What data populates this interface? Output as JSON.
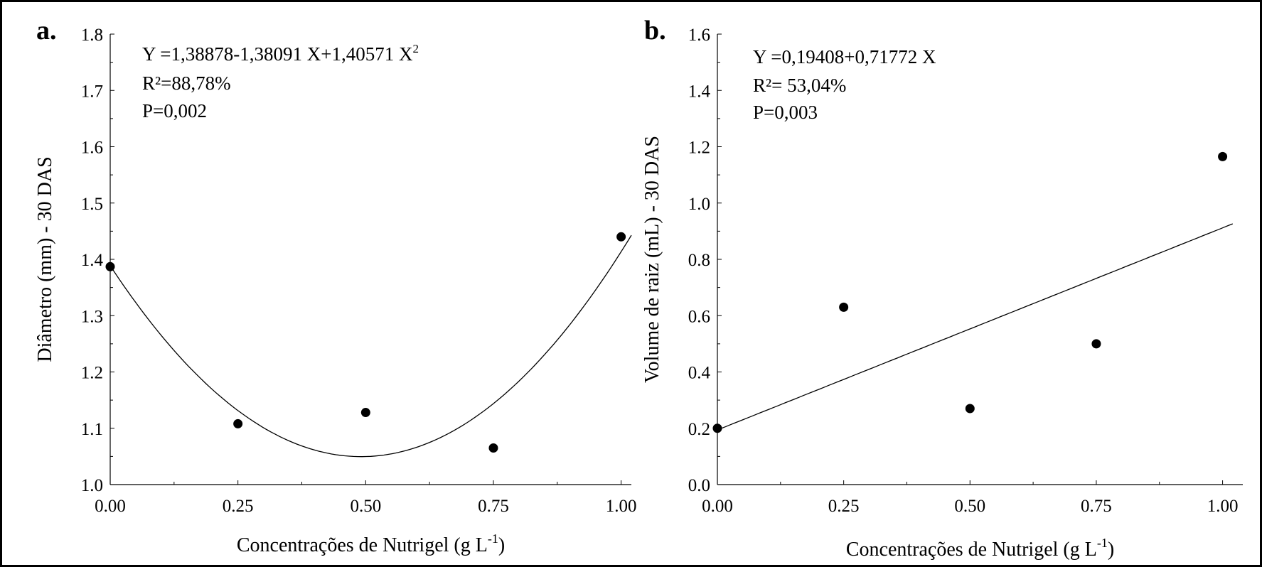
{
  "chart_data": [
    {
      "type": "scatter",
      "panel_label": "a.",
      "title": "",
      "xlabel": "Concentrações de Nutrigel (g L",
      "xlabel_sup": "-1",
      "xlabel_suffix": ")",
      "ylabel": "Diâmetro (mm) - 30 DAS",
      "xlim": [
        0,
        1.02
      ],
      "ylim": [
        1.0,
        1.8
      ],
      "xticks": [
        0.0,
        0.25,
        0.5,
        0.75,
        1.0
      ],
      "xtick_labels": [
        "0.00",
        "0.25",
        "0.50",
        "0.75",
        "1.00"
      ],
      "yticks": [
        1.0,
        1.1,
        1.2,
        1.3,
        1.4,
        1.5,
        1.6,
        1.7,
        1.8
      ],
      "ytick_labels": [
        "1.0",
        "1.1",
        "1.2",
        "1.3",
        "1.4",
        "1.5",
        "1.6",
        "1.7",
        "1.8"
      ],
      "points": {
        "x": [
          0.0,
          0.25,
          0.5,
          0.75,
          1.0
        ],
        "y": [
          1.387,
          1.108,
          1.128,
          1.065,
          1.44
        ]
      },
      "fit": {
        "kind": "quadratic",
        "coefficients": [
          1.38878,
          -1.38091,
          1.40571
        ],
        "x_range": [
          0,
          1.02
        ]
      },
      "annotations": {
        "equation_main": "Y =1,38878-1,38091 X+1,40571 X",
        "equation_sup": "2",
        "r2": "R²=88,78%",
        "p": "P=0,002"
      }
    },
    {
      "type": "scatter",
      "panel_label": "b.",
      "title": "",
      "xlabel": "Concentrações de Nutrigel (g L",
      "xlabel_sup": "-1",
      "xlabel_suffix": ")",
      "ylabel": "Volume de raiz (mL) - 30 DAS",
      "xlim": [
        0,
        1.04
      ],
      "ylim": [
        0.0,
        1.6
      ],
      "xticks": [
        0.0,
        0.25,
        0.5,
        0.75,
        1.0
      ],
      "xtick_labels": [
        "0.00",
        "0.25",
        "0.50",
        "0.75",
        "1.00"
      ],
      "yticks": [
        0.0,
        0.2,
        0.4,
        0.6,
        0.8,
        1.0,
        1.2,
        1.4,
        1.6
      ],
      "ytick_labels": [
        "0.0",
        "0.2",
        "0.4",
        "0.6",
        "0.8",
        "1.0",
        "1.2",
        "1.4",
        "1.6"
      ],
      "points": {
        "x": [
          0.0,
          0.25,
          0.5,
          0.75,
          1.0
        ],
        "y": [
          0.2,
          0.63,
          0.27,
          0.5,
          1.165
        ]
      },
      "fit": {
        "kind": "linear",
        "coefficients": [
          0.19408,
          0.71772
        ],
        "x_range": [
          0,
          1.02
        ]
      },
      "annotations": {
        "equation_main": "Y =0,19408+0,71772 X",
        "equation_sup": "",
        "r2": "R²= 53,04%",
        "p": "P=0,003"
      }
    }
  ]
}
